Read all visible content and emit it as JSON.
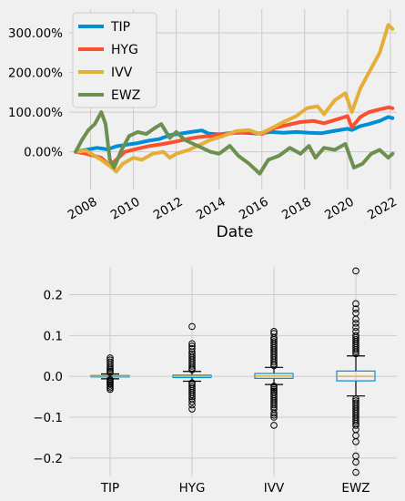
{
  "chart_data": [
    {
      "type": "line",
      "title": "",
      "xlabel": "Date",
      "ylabel": "",
      "x_ticks": [
        "2008",
        "2010",
        "2012",
        "2014",
        "2016",
        "2018",
        "2020",
        "2022"
      ],
      "y_ticks": [
        "0.00%",
        "100.00%",
        "200.00%",
        "300.00%"
      ],
      "ylim": [
        -95,
        360
      ],
      "xlim": [
        2007.0,
        2022.3
      ],
      "grid": true,
      "legend": {
        "position": "top-left",
        "entries": [
          "TIP",
          "HYG",
          "IVV",
          "EWZ"
        ]
      },
      "series": [
        {
          "name": "TIP",
          "color": "#008fd5",
          "points": [
            [
              2007.3,
              0
            ],
            [
              2007.8,
              5
            ],
            [
              2008.3,
              10
            ],
            [
              2008.8,
              6
            ],
            [
              2009.2,
              14
            ],
            [
              2009.7,
              18
            ],
            [
              2010.2,
              22
            ],
            [
              2010.7,
              28
            ],
            [
              2011.2,
              32
            ],
            [
              2011.7,
              42
            ],
            [
              2012.2,
              46
            ],
            [
              2012.7,
              50
            ],
            [
              2013.2,
              54
            ],
            [
              2013.5,
              46
            ],
            [
              2014.0,
              44
            ],
            [
              2014.6,
              48
            ],
            [
              2015.2,
              48
            ],
            [
              2015.8,
              46
            ],
            [
              2016.4,
              50
            ],
            [
              2017.0,
              48
            ],
            [
              2017.6,
              50
            ],
            [
              2018.2,
              48
            ],
            [
              2018.8,
              47
            ],
            [
              2019.4,
              53
            ],
            [
              2020.0,
              58
            ],
            [
              2020.2,
              55
            ],
            [
              2020.6,
              65
            ],
            [
              2021.0,
              70
            ],
            [
              2021.5,
              78
            ],
            [
              2021.9,
              88
            ],
            [
              2022.1,
              85
            ]
          ]
        },
        {
          "name": "HYG",
          "color": "#fc4f30",
          "points": [
            [
              2007.3,
              0
            ],
            [
              2007.8,
              -5
            ],
            [
              2008.5,
              -15
            ],
            [
              2008.9,
              -35
            ],
            [
              2009.2,
              -20
            ],
            [
              2009.6,
              0
            ],
            [
              2010.2,
              8
            ],
            [
              2010.8,
              15
            ],
            [
              2011.4,
              20
            ],
            [
              2011.9,
              25
            ],
            [
              2012.5,
              32
            ],
            [
              2013.0,
              37
            ],
            [
              2013.6,
              40
            ],
            [
              2014.2,
              45
            ],
            [
              2014.8,
              48
            ],
            [
              2015.4,
              50
            ],
            [
              2016.0,
              45
            ],
            [
              2016.6,
              60
            ],
            [
              2017.2,
              68
            ],
            [
              2017.8,
              75
            ],
            [
              2018.4,
              78
            ],
            [
              2018.9,
              72
            ],
            [
              2019.4,
              80
            ],
            [
              2020.0,
              90
            ],
            [
              2020.2,
              62
            ],
            [
              2020.6,
              88
            ],
            [
              2021.0,
              100
            ],
            [
              2021.5,
              107
            ],
            [
              2021.9,
              112
            ],
            [
              2022.1,
              110
            ]
          ]
        },
        {
          "name": "IVV",
          "color": "#e5ae38",
          "points": [
            [
              2007.3,
              0
            ],
            [
              2007.8,
              3
            ],
            [
              2008.5,
              -20
            ],
            [
              2009.0,
              -40
            ],
            [
              2009.2,
              -50
            ],
            [
              2009.5,
              -30
            ],
            [
              2010.0,
              -15
            ],
            [
              2010.4,
              -20
            ],
            [
              2010.9,
              -5
            ],
            [
              2011.4,
              0
            ],
            [
              2011.7,
              -15
            ],
            [
              2012.0,
              -5
            ],
            [
              2012.6,
              5
            ],
            [
              2013.0,
              15
            ],
            [
              2013.6,
              30
            ],
            [
              2014.2,
              40
            ],
            [
              2014.8,
              52
            ],
            [
              2015.4,
              55
            ],
            [
              2015.9,
              45
            ],
            [
              2016.4,
              58
            ],
            [
              2017.0,
              75
            ],
            [
              2017.6,
              90
            ],
            [
              2018.1,
              110
            ],
            [
              2018.6,
              115
            ],
            [
              2018.9,
              95
            ],
            [
              2019.4,
              130
            ],
            [
              2019.9,
              148
            ],
            [
              2020.2,
              100
            ],
            [
              2020.6,
              160
            ],
            [
              2021.0,
              200
            ],
            [
              2021.5,
              250
            ],
            [
              2021.9,
              320
            ],
            [
              2022.1,
              310
            ]
          ]
        },
        {
          "name": "EWZ",
          "color": "#6d904f",
          "points": [
            [
              2007.3,
              0
            ],
            [
              2007.6,
              30
            ],
            [
              2007.9,
              55
            ],
            [
              2008.2,
              70
            ],
            [
              2008.5,
              100
            ],
            [
              2008.7,
              70
            ],
            [
              2008.9,
              -20
            ],
            [
              2009.1,
              -40
            ],
            [
              2009.4,
              0
            ],
            [
              2009.8,
              40
            ],
            [
              2010.2,
              50
            ],
            [
              2010.6,
              45
            ],
            [
              2011.0,
              60
            ],
            [
              2011.3,
              70
            ],
            [
              2011.7,
              35
            ],
            [
              2012.0,
              50
            ],
            [
              2012.4,
              30
            ],
            [
              2012.8,
              20
            ],
            [
              2013.2,
              10
            ],
            [
              2013.6,
              0
            ],
            [
              2014.0,
              -5
            ],
            [
              2014.5,
              15
            ],
            [
              2014.9,
              -10
            ],
            [
              2015.4,
              -30
            ],
            [
              2015.9,
              -55
            ],
            [
              2016.3,
              -20
            ],
            [
              2016.8,
              -10
            ],
            [
              2017.3,
              10
            ],
            [
              2017.8,
              -5
            ],
            [
              2018.2,
              15
            ],
            [
              2018.5,
              -15
            ],
            [
              2018.9,
              10
            ],
            [
              2019.4,
              5
            ],
            [
              2019.9,
              20
            ],
            [
              2020.1,
              -10
            ],
            [
              2020.3,
              -40
            ],
            [
              2020.7,
              -30
            ],
            [
              2021.1,
              -5
            ],
            [
              2021.5,
              5
            ],
            [
              2021.9,
              -15
            ],
            [
              2022.1,
              -5
            ]
          ]
        }
      ]
    },
    {
      "type": "box",
      "title": "",
      "categories": [
        "TIP",
        "HYG",
        "IVV",
        "EWZ"
      ],
      "y_ticks": [
        "−0.2",
        "−0.1",
        "0.0",
        "0.1",
        "0.2"
      ],
      "ylim": [
        -0.245,
        0.268
      ],
      "grid": true,
      "box_color": "#008fd5",
      "median_color": "#e5ae38",
      "boxes": [
        {
          "name": "TIP",
          "q1": -0.0015,
          "median": 0.0002,
          "q3": 0.002,
          "whisker_low": -0.006,
          "whisker_high": 0.006,
          "outliers": [
            0.045,
            0.04,
            0.035,
            0.03,
            0.025,
            0.02,
            0.016,
            0.012,
            0.009,
            -0.008,
            -0.011,
            -0.014,
            -0.017,
            -0.02,
            -0.024,
            -0.028,
            -0.032
          ]
        },
        {
          "name": "HYG",
          "q1": -0.003,
          "median": 0.0003,
          "q3": 0.003,
          "whisker_low": -0.012,
          "whisker_high": 0.012,
          "outliers": [
            0.122,
            0.08,
            0.074,
            0.068,
            0.06,
            0.055,
            0.05,
            0.045,
            0.04,
            0.035,
            0.03,
            0.025,
            0.02,
            0.016,
            -0.016,
            -0.02,
            -0.025,
            -0.03,
            -0.035,
            -0.04,
            -0.045,
            -0.05,
            -0.055,
            -0.062,
            -0.07,
            -0.08
          ]
        },
        {
          "name": "IVV",
          "q1": -0.005,
          "median": 0.0006,
          "q3": 0.007,
          "whisker_low": -0.02,
          "whisker_high": 0.022,
          "outliers": [
            0.11,
            0.105,
            0.095,
            0.09,
            0.085,
            0.08,
            0.075,
            0.07,
            0.065,
            0.06,
            0.055,
            0.05,
            0.045,
            0.04,
            0.035,
            0.03,
            0.026,
            -0.024,
            -0.028,
            -0.032,
            -0.036,
            -0.04,
            -0.045,
            -0.05,
            -0.055,
            -0.06,
            -0.065,
            -0.07,
            -0.075,
            -0.08,
            -0.09,
            -0.095,
            -0.1,
            -0.12
          ]
        },
        {
          "name": "EWZ",
          "q1": -0.011,
          "median": 0.0,
          "q3": 0.013,
          "whisker_low": -0.048,
          "whisker_high": 0.05,
          "outliers": [
            0.258,
            0.178,
            0.165,
            0.155,
            0.14,
            0.13,
            0.12,
            0.11,
            0.1,
            0.095,
            0.09,
            0.085,
            0.08,
            0.075,
            0.07,
            0.065,
            0.06,
            0.055,
            -0.055,
            -0.06,
            -0.065,
            -0.07,
            -0.075,
            -0.08,
            -0.085,
            -0.09,
            -0.095,
            -0.1,
            -0.105,
            -0.11,
            -0.115,
            -0.12,
            -0.13,
            -0.145,
            -0.16,
            -0.195,
            -0.21,
            -0.235
          ]
        }
      ]
    }
  ]
}
